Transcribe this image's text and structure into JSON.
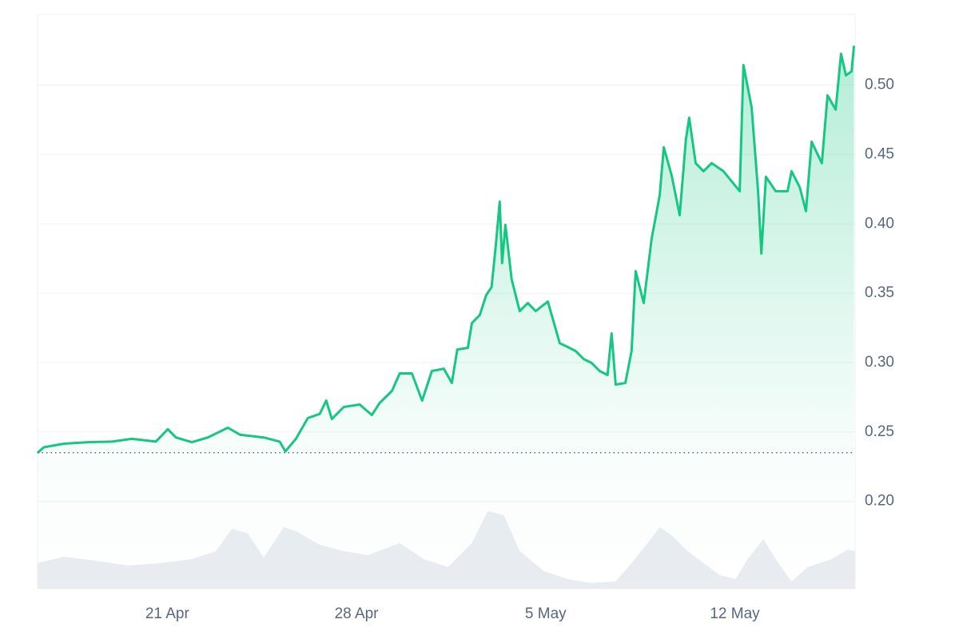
{
  "chart_data": {
    "type": "line",
    "xlim": [
      16.2,
      46.45
    ],
    "xticks": [
      {
        "value": 21,
        "label": "21 Apr"
      },
      {
        "value": 28,
        "label": "28 Apr"
      },
      {
        "value": 35,
        "label": "5 May"
      },
      {
        "value": 42,
        "label": "12 May"
      }
    ],
    "ylim": [
      0.137,
      0.551
    ],
    "yticks": [
      {
        "value": 0.2,
        "label": "0.20"
      },
      0.25,
      {
        "value": 0.3,
        "label": "0.30"
      },
      0.35,
      {
        "value": 0.4,
        "label": "0.40"
      },
      0.45,
      {
        "value": 0.5,
        "label": "0.50"
      }
    ],
    "y2lim": [
      0,
      100
    ],
    "grid": true,
    "baseline": 0.235,
    "series": [
      {
        "color": "#16c784",
        "x": [
          16.2,
          16.44,
          17.18,
          18.06,
          18.95,
          19.69,
          20.58,
          21.02,
          21.32,
          21.91,
          22.5,
          23.24,
          23.69,
          24.57,
          25.16,
          25.37,
          25.76,
          26.2,
          26.64,
          26.88,
          27.09,
          27.53,
          28.12,
          28.57,
          28.86,
          29.31,
          29.6,
          30.05,
          30.43,
          30.79,
          31.23,
          31.53,
          31.73,
          32.12,
          32.27,
          32.56,
          32.8,
          33.0,
          33.15,
          33.3,
          33.39,
          33.51,
          33.74,
          34.04,
          34.34,
          34.63,
          35.08,
          35.52,
          35.82,
          36.11,
          36.41,
          36.7,
          37.0,
          37.29,
          37.44,
          37.59,
          37.95,
          38.18,
          38.33,
          38.63,
          38.92,
          39.22,
          39.37,
          39.66,
          39.96,
          40.19,
          40.31,
          40.55,
          40.84,
          41.14,
          41.58,
          42.18,
          42.32,
          42.62,
          42.86,
          42.98,
          43.15,
          43.51,
          43.95,
          44.1,
          44.4,
          44.63,
          44.84,
          45.22,
          45.43,
          45.73,
          45.93,
          46.11,
          46.32,
          46.41
        ],
        "values": [
          0.235,
          0.239,
          0.2415,
          0.2426,
          0.243,
          0.245,
          0.243,
          0.252,
          0.246,
          0.2426,
          0.246,
          0.253,
          0.248,
          0.246,
          0.243,
          0.236,
          0.245,
          0.26,
          0.263,
          0.2726,
          0.2593,
          0.268,
          0.2697,
          0.2622,
          0.2709,
          0.2795,
          0.2922,
          0.2922,
          0.2726,
          0.2939,
          0.2956,
          0.2853,
          0.3094,
          0.3106,
          0.3285,
          0.3342,
          0.3486,
          0.3544,
          0.3832,
          0.416,
          0.3717,
          0.3993,
          0.3601,
          0.3371,
          0.3429,
          0.3371,
          0.344,
          0.314,
          0.3112,
          0.3083,
          0.3025,
          0.2997,
          0.2939,
          0.291,
          0.321,
          0.2841,
          0.2853,
          0.3083,
          0.3659,
          0.3429,
          0.3889,
          0.4206,
          0.4552,
          0.435,
          0.4062,
          0.4609,
          0.4765,
          0.4437,
          0.4379,
          0.4437,
          0.4379,
          0.4235,
          0.5145,
          0.484,
          0.4235,
          0.3786,
          0.4339,
          0.4235,
          0.4235,
          0.4379,
          0.4264,
          0.4091,
          0.4592,
          0.4437,
          0.4926,
          0.4823,
          0.5226,
          0.507,
          0.5099,
          0.5283
        ]
      },
      {
        "color": "#e9ecf1",
        "axis": "y2",
        "x": [
          16.2,
          17.18,
          18.36,
          19.54,
          20.73,
          21.91,
          22.8,
          23.39,
          23.98,
          24.57,
          25.31,
          25.76,
          26.64,
          27.53,
          28.42,
          29.6,
          30.49,
          31.38,
          32.27,
          32.86,
          33.45,
          34.04,
          34.93,
          35.82,
          36.7,
          37.59,
          38.18,
          38.77,
          39.22,
          39.66,
          40.25,
          40.84,
          41.44,
          42.03,
          42.47,
          43.06,
          43.51,
          44.1,
          44.69,
          45.58,
          46.17,
          46.45
        ],
        "values": [
          4.45,
          5.56,
          4.87,
          4.03,
          4.45,
          5.15,
          6.54,
          10.43,
          9.6,
          5.42,
          10.71,
          10.01,
          7.65,
          6.54,
          5.84,
          7.93,
          5.15,
          3.76,
          7.93,
          13.49,
          12.8,
          6.54,
          3.06,
          1.67,
          0.97,
          1.25,
          4.45,
          7.93,
          10.71,
          9.32,
          6.54,
          4.45,
          2.36,
          1.67,
          5.15,
          8.62,
          5.15,
          1.25,
          3.76,
          5.15,
          6.82,
          6.54
        ]
      }
    ]
  }
}
